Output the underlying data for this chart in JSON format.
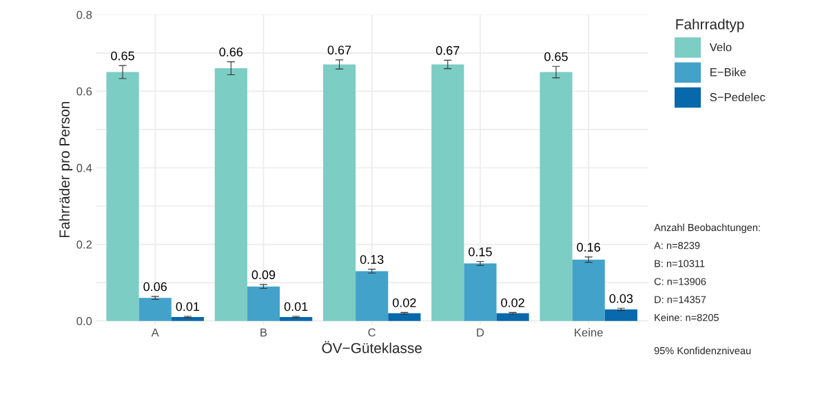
{
  "chart_data": {
    "type": "bar",
    "xlabel": "ÖV−Güteklasse",
    "ylabel": "Fahrräder pro Person",
    "legend_title": "Fahrradtyp",
    "categories": [
      "A",
      "B",
      "C",
      "D",
      "Keine"
    ],
    "series": [
      {
        "name": "Velo",
        "color": "#7ccdc4",
        "values": [
          0.65,
          0.66,
          0.67,
          0.67,
          0.65
        ],
        "errors": [
          0.017,
          0.017,
          0.012,
          0.011,
          0.015
        ]
      },
      {
        "name": "E−Bike",
        "color": "#43a2ca",
        "values": [
          0.06,
          0.09,
          0.13,
          0.15,
          0.16
        ],
        "errors": [
          0.004,
          0.005,
          0.005,
          0.005,
          0.007
        ]
      },
      {
        "name": "S−Pedelec",
        "color": "#0868ac",
        "values": [
          0.01,
          0.01,
          0.02,
          0.02,
          0.03
        ],
        "errors": [
          0.002,
          0.002,
          0.002,
          0.002,
          0.003
        ]
      }
    ],
    "data_labels": true,
    "ylim": [
      -0.01,
      0.8
    ],
    "yticks": [
      {
        "value": 0,
        "label": "0.0"
      },
      {
        "value": 0.1,
        "label": null
      },
      0.2,
      {
        "value": 0.3,
        "label": null
      },
      0.4,
      {
        "value": 0.5,
        "label": null
      },
      0.6,
      {
        "value": 0.7,
        "label": null
      },
      0.8
    ],
    "grid": true,
    "legend": "right",
    "annotations": [
      "Anzahl Beobachtungen:",
      "A: n=8239",
      "B: n=10311",
      "C: n=13906",
      "D: n=14357",
      "Keine: n=8205",
      "95% Konfidenzniveau"
    ]
  }
}
